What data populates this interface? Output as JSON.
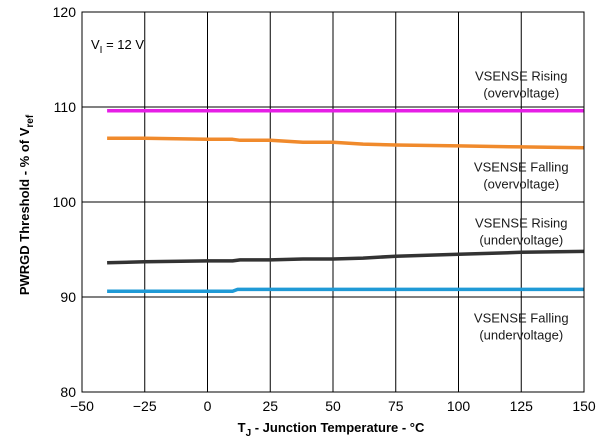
{
  "chart_data": {
    "type": "line",
    "condition": {
      "main": "V",
      "sub": "I",
      "rest": " = 12 V"
    },
    "ylabel": {
      "main": "PWRGD Threshold - % of V",
      "sub": "ref"
    },
    "xlabel": {
      "main": "T",
      "sub": "J",
      "rest": " - Junction Temperature - °C"
    },
    "xlim": [
      -50,
      150
    ],
    "ylim": [
      80,
      120
    ],
    "xticks": [
      -50,
      -25,
      0,
      25,
      50,
      75,
      100,
      125,
      150
    ],
    "xtick_labels": [
      "−50",
      "−25",
      "0",
      "25",
      "50",
      "75",
      "100",
      "125",
      "150"
    ],
    "yticks": [
      80,
      90,
      100,
      110,
      120
    ],
    "ytick_labels": [
      "80",
      "90",
      "100",
      "110",
      "120"
    ],
    "grid": true,
    "series": [
      {
        "name": "VSENSE Rising (overvoltage)",
        "color": "#e61ee6",
        "x": [
          -40,
          -25,
          0,
          25,
          50,
          75,
          100,
          125,
          150
        ],
        "y": [
          109.6,
          109.6,
          109.6,
          109.6,
          109.6,
          109.6,
          109.6,
          109.6,
          109.6
        ]
      },
      {
        "name": "VSENSE Falling (overvoltage)",
        "color": "#f08a2c",
        "x": [
          -40,
          -25,
          0,
          10,
          13,
          25,
          38,
          50,
          62,
          75,
          100,
          125,
          150
        ],
        "y": [
          106.7,
          106.7,
          106.6,
          106.6,
          106.5,
          106.5,
          106.3,
          106.3,
          106.1,
          106.0,
          105.9,
          105.8,
          105.7
        ]
      },
      {
        "name": "VSENSE Rising (undervoltage)",
        "color": "#333333",
        "x": [
          -40,
          -25,
          0,
          10,
          13,
          25,
          38,
          50,
          62,
          75,
          100,
          125,
          150
        ],
        "y": [
          93.6,
          93.7,
          93.8,
          93.8,
          93.9,
          93.9,
          94.0,
          94.0,
          94.1,
          94.3,
          94.5,
          94.7,
          94.8
        ]
      },
      {
        "name": "VSENSE Falling (undervoltage)",
        "color": "#1f9ad6",
        "x": [
          -40,
          -25,
          0,
          10,
          12,
          25,
          50,
          75,
          100,
          125,
          150
        ],
        "y": [
          90.6,
          90.6,
          90.6,
          90.6,
          90.8,
          90.8,
          90.8,
          90.8,
          90.8,
          90.8,
          90.8
        ]
      }
    ],
    "annotations": [
      {
        "line1": "VSENSE Rising",
        "line2": "(overvoltage)",
        "x": 125,
        "y": 112.8
      },
      {
        "line1": "VSENSE Falling",
        "line2": "(overvoltage)",
        "x": 125,
        "y": 103.2
      },
      {
        "line1": "VSENSE Rising",
        "line2": "(undervoltage)",
        "x": 125,
        "y": 97.3
      },
      {
        "line1": "VSENSE Falling",
        "line2": "(undervoltage)",
        "x": 125,
        "y": 87.3
      }
    ]
  }
}
